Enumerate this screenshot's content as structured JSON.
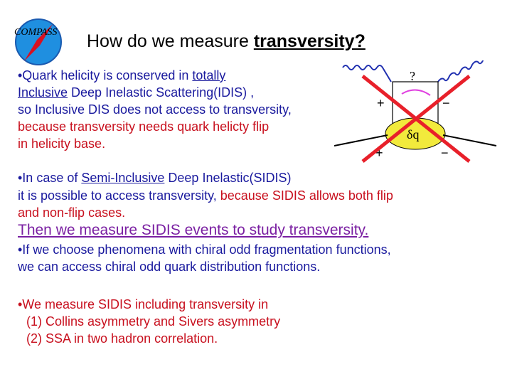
{
  "logo": {
    "text": "COMPASS"
  },
  "title": {
    "plain": "How do we measure ",
    "bold": "transversity?"
  },
  "bullet1": {
    "l1a": "•Quark helicity is conserved in ",
    "l1u": "totally",
    "l2u": "Inclusive",
    "l2b": " Deep Inelastic Scattering(IDIS) ,",
    "l3": "so Inclusive DIS does not access to transversity,",
    "l4": "because transversity needs quark helicty flip",
    "l5": "in helicity base."
  },
  "bullet2": {
    "l1a": "•In case of ",
    "l1u": "Semi-Inclusive",
    "l1b": " Deep Inelastic(SIDIS)",
    "l2a": "it is possible to access transversity, ",
    "l2b": "because SIDIS allows both flip",
    "l3": "and non-flip cases."
  },
  "highlight": "Then we measure SIDIS events to study transversity.",
  "bullet3": {
    "l1": "•If we choose phenomena with chiral odd fragmentation functions,",
    "l2": "we can access chiral odd quark distribution functions."
  },
  "bullet4": {
    "l1": "•We measure SIDIS including transversity in",
    "l2": "(1)  Collins asymmetry and Sivers asymmetry",
    "l3": "(2) SSA in two hadron correlation."
  },
  "diagram": {
    "question": "?",
    "plus_top": "+",
    "minus_top": "−",
    "blob": "δq",
    "plus_bottom": "+",
    "minus_bottom": "−"
  },
  "colors": {
    "blue": "#1a1a9e",
    "red": "#c8101e",
    "purple": "#7a1fa2"
  }
}
